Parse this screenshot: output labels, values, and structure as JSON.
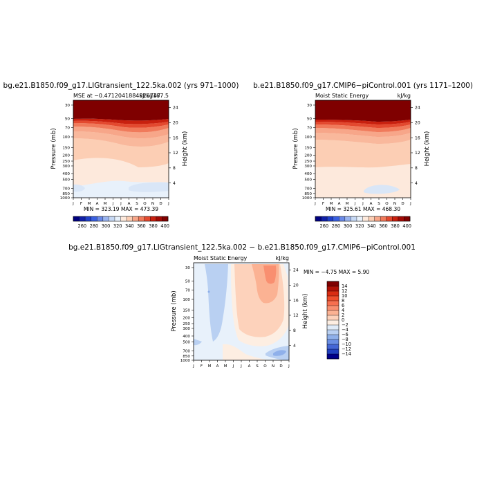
{
  "panels": [
    {
      "title": "bg.e21.B1850.f09_g17.LIGtransient_122.5ka.002 (yrs 971–1000)",
      "subtitle_left": "MSE at −0.4712041884816747",
      "subtitle_right": "kJ/kg167.5",
      "minmax": "MIN = 323.19 MAX = 473.39"
    },
    {
      "title": "b.e21.B1850.f09_g17.CMIP6−piControl.001 (yrs 1171–1200)",
      "subtitle_left": "Moist Static Energy",
      "subtitle_right": "kJ/kg",
      "minmax": "MIN = 325.61 MAX = 468.30"
    },
    {
      "title": "bg.e21.B1850.f09_g17.LIGtransient_122.5ka.002 − b.e21.B1850.f09_g17.CMIP6−piControl.001",
      "subtitle_left": "Moist Static Energy",
      "subtitle_right": "kJ/kg",
      "minmax": "MIN =  −4.75 MAX =   5.90"
    }
  ],
  "axes": {
    "ylabel_left": "Pressure (mb)",
    "ylabel_right": "Height (km)",
    "pressure_ticks": [
      "30",
      "50",
      "70",
      "100",
      "150",
      "200",
      "250",
      "300",
      "400",
      "500",
      "700",
      "850",
      "1000"
    ],
    "height_ticks": [
      "4",
      "8",
      "12",
      "16",
      "20",
      "24"
    ],
    "month_ticks": [
      "J",
      "F",
      "M",
      "A",
      "M",
      "J",
      "J",
      "A",
      "S",
      "O",
      "N",
      "D",
      "J"
    ]
  },
  "colorbar_abs": {
    "labels": [
      "260",
      "280",
      "300",
      "320",
      "340",
      "360",
      "380",
      "400"
    ],
    "colors": [
      "#00007f",
      "#1020a8",
      "#2040c8",
      "#3a60e0",
      "#6a8ae8",
      "#9ab4ef",
      "#c6d8f4",
      "#e8f1fb",
      "#fde9dc",
      "#fcceb4",
      "#f7a689",
      "#f07a5b",
      "#e3492f",
      "#c8200f",
      "#a00a05",
      "#7f0000"
    ]
  },
  "colorbar_diff": {
    "labels": [
      "14",
      "12",
      "10",
      "8",
      "6",
      "4",
      "2",
      "0",
      "−2",
      "−4",
      "−6",
      "−8",
      "−10",
      "−12",
      "−14"
    ],
    "colors": [
      "#7f0000",
      "#b01005",
      "#d92c12",
      "#ef4e2c",
      "#f76f4f",
      "#f98f70",
      "#fbb293",
      "#fdd2bb",
      "#fdeee2",
      "#dfebf8",
      "#b9d0f2",
      "#8fb0ea",
      "#6a8ee4",
      "#4466d6",
      "#2040c0",
      "#00008a"
    ]
  },
  "chart_data": [
    {
      "type": "heatmap",
      "title": "bg.e21.B1850.f09_g17.LIGtransient_122.5ka.002 (yrs 971–1000)",
      "subtitle": "MSE at −0.4712041884816747 kJ/kg167.5",
      "xlabel": "",
      "ylabel": "Pressure (mb)",
      "ylabel_right": "Height (km)",
      "x": [
        "J",
        "F",
        "M",
        "A",
        "M",
        "J",
        "J",
        "A",
        "S",
        "O",
        "N",
        "D",
        "J"
      ],
      "ylim": [
        1000,
        25
      ],
      "y_scale": "log",
      "contour_levels": [
        260,
        270,
        280,
        290,
        300,
        310,
        320,
        330,
        340,
        350,
        360,
        370,
        380,
        390,
        400
      ],
      "min": 323.19,
      "max": 473.39
    },
    {
      "type": "heatmap",
      "title": "b.e21.B1850.f09_g17.CMIP6−piControl.001 (yrs 1171–1200)",
      "subtitle": "Moist Static Energy kJ/kg",
      "xlabel": "",
      "ylabel": "Pressure (mb)",
      "ylabel_right": "Height (km)",
      "x": [
        "J",
        "F",
        "M",
        "A",
        "M",
        "J",
        "J",
        "A",
        "S",
        "O",
        "N",
        "D",
        "J"
      ],
      "ylim": [
        1000,
        25
      ],
      "y_scale": "log",
      "contour_levels": [
        260,
        270,
        280,
        290,
        300,
        310,
        320,
        330,
        340,
        350,
        360,
        370,
        380,
        390,
        400
      ],
      "min": 325.61,
      "max": 468.3
    },
    {
      "type": "heatmap",
      "title": "bg.e21.B1850.f09_g17.LIGtransient_122.5ka.002 − b.e21.B1850.f09_g17.CMIP6−piControl.001",
      "subtitle": "Moist Static Energy kJ/kg",
      "xlabel": "",
      "ylabel": "Pressure (mb)",
      "ylabel_right": "Height (km)",
      "x": [
        "J",
        "F",
        "M",
        "A",
        "M",
        "J",
        "J",
        "A",
        "S",
        "O",
        "N",
        "D",
        "J"
      ],
      "ylim": [
        1000,
        25
      ],
      "y_scale": "log",
      "contour_levels": [
        -14,
        -12,
        -10,
        -8,
        -6,
        -4,
        -2,
        0,
        2,
        4,
        6,
        8,
        10,
        12,
        14
      ],
      "min": -4.75,
      "max": 5.9
    }
  ]
}
